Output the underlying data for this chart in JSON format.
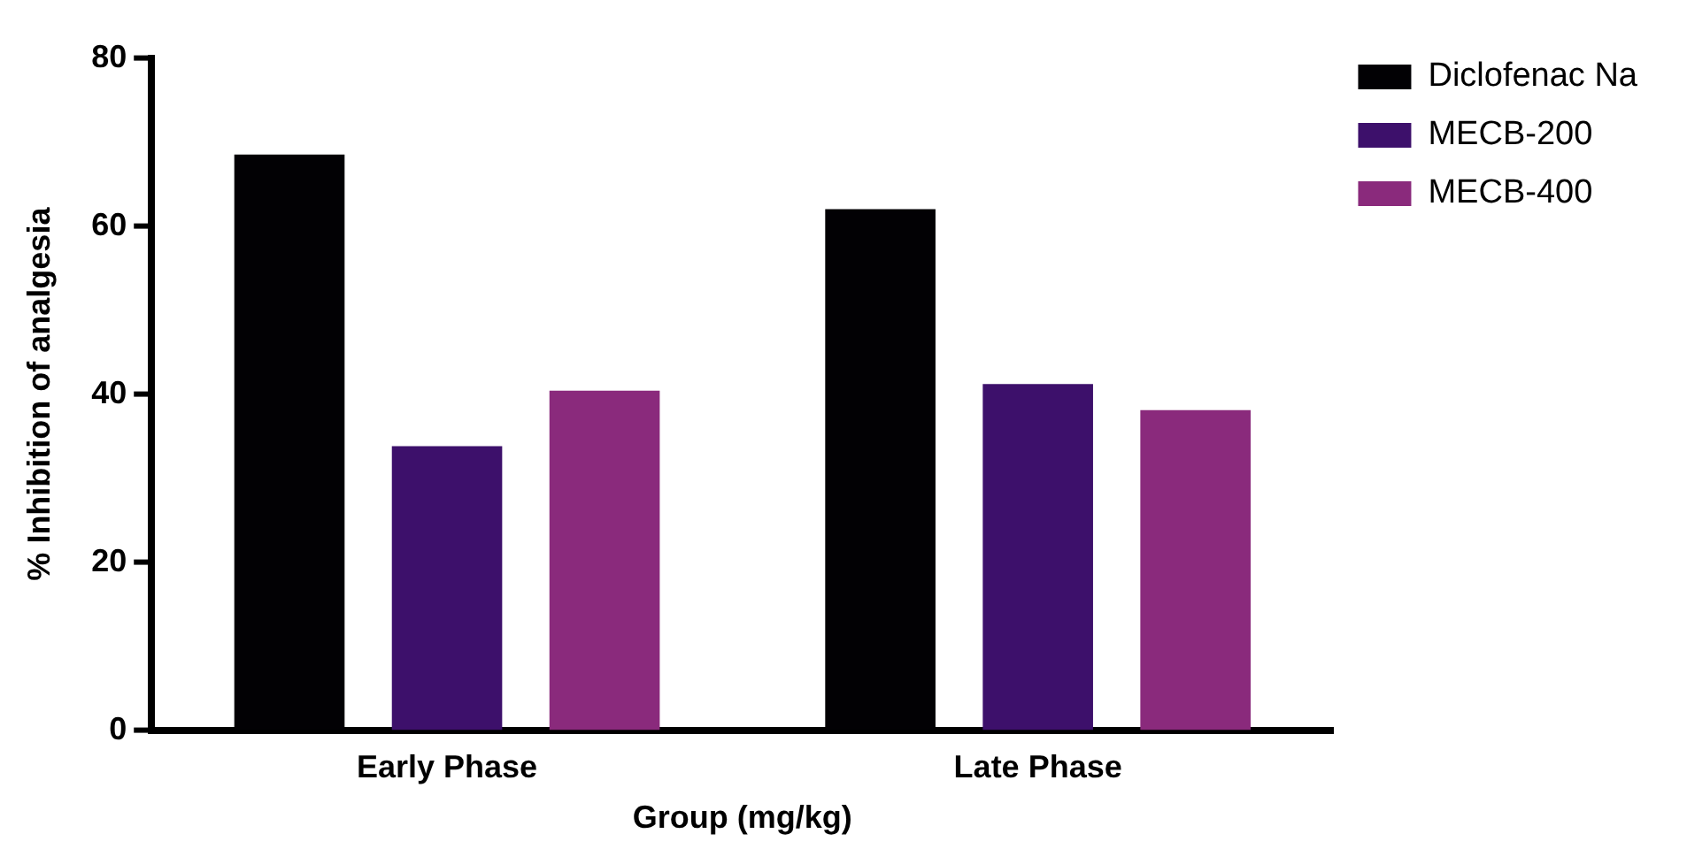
{
  "chart_data": {
    "type": "bar",
    "xlabel": "Group (mg/kg)",
    "ylabel": "% Inhibition of analgesia",
    "categories": [
      "Early Phase",
      "Late Phase"
    ],
    "series": [
      {
        "name": "Diclofenac Na",
        "color": "#020104",
        "values": [
          68.5,
          62.0
        ]
      },
      {
        "name": "MECB-200",
        "color": "#3d106b",
        "values": [
          33.8,
          41.2
        ]
      },
      {
        "name": "MECB-400",
        "color": "#8a2a7c",
        "values": [
          40.4,
          38.1
        ]
      }
    ],
    "ylim": [
      0,
      80
    ],
    "yticks": [
      0,
      20,
      40,
      60,
      80
    ],
    "grid": false,
    "legend": "top right"
  }
}
